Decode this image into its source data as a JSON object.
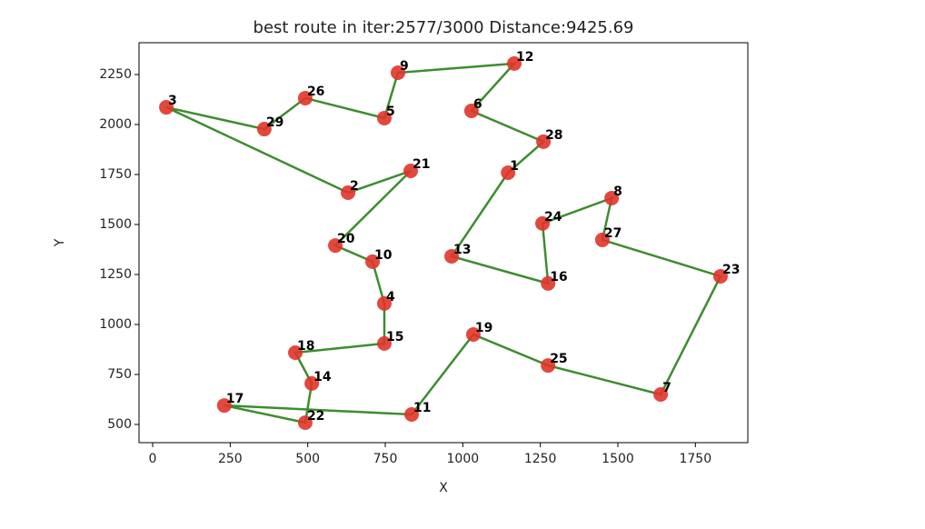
{
  "chart_data": {
    "type": "route",
    "title": "best route in iter:2577/3000 Distance:9425.69",
    "xlabel": "X",
    "ylabel": "Y",
    "point_labels": [
      3,
      29,
      26,
      5,
      9,
      12,
      6,
      28,
      1,
      13,
      16,
      24,
      8,
      27,
      23,
      7,
      25,
      19,
      11,
      17,
      22,
      14,
      18,
      15,
      4,
      10,
      20,
      21,
      2
    ],
    "x": [
      44,
      360,
      492,
      747,
      791,
      1166,
      1028,
      1260,
      1146,
      964,
      1275,
      1257,
      1480,
      1450,
      1831,
      1638,
      1275,
      1034,
      835,
      231,
      492,
      513,
      460,
      747,
      747,
      709,
      589,
      832,
      630
    ],
    "y": [
      2086,
      1977,
      2132,
      2032,
      2259,
      2305,
      2068,
      1914,
      1759,
      1341,
      1205,
      1505,
      1632,
      1423,
      1241,
      650,
      795,
      950,
      550,
      595,
      509,
      705,
      859,
      905,
      1105,
      1314,
      1395,
      1768,
      1659
    ],
    "point_color": "#e0342a",
    "line_color": "#3c8d2f",
    "xlim": [
      -44,
      1919
    ],
    "ylim": [
      409,
      2409
    ],
    "xticks": [
      0,
      250,
      500,
      750,
      1000,
      1250,
      1500,
      1750
    ],
    "yticks": [
      500,
      750,
      1000,
      1250,
      1500,
      1750,
      2000,
      2250
    ]
  }
}
